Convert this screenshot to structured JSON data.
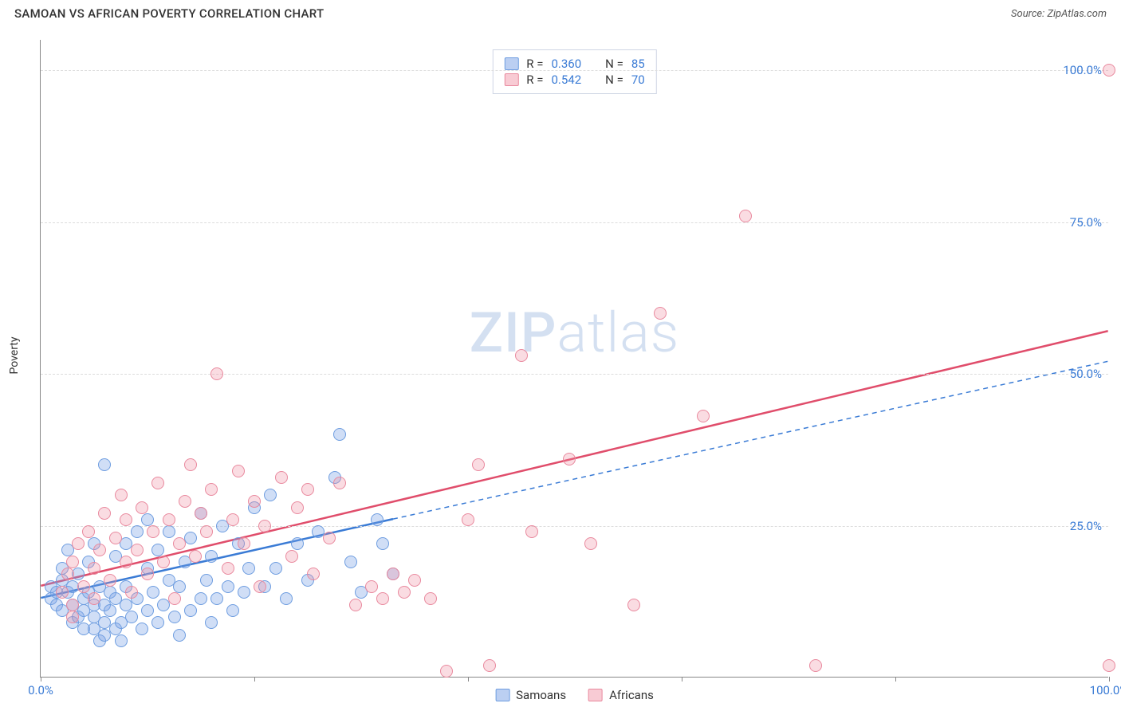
{
  "title": "SAMOAN VS AFRICAN POVERTY CORRELATION CHART",
  "source_label": "Source:",
  "source_name": "ZipAtlas.com",
  "ylabel": "Poverty",
  "watermark_bold": "ZIP",
  "watermark_light": "atlas",
  "chart": {
    "type": "scatter",
    "xlim": [
      0,
      100
    ],
    "ylim": [
      0,
      105
    ],
    "x_ticks": [
      0,
      20,
      40,
      60,
      80,
      100
    ],
    "x_tick_labels": [
      "0.0%",
      "",
      "",
      "",
      "",
      "100.0%"
    ],
    "y_gridlines": [
      25,
      50,
      75,
      100
    ],
    "y_tick_labels": [
      "25.0%",
      "50.0%",
      "75.0%",
      "100.0%"
    ],
    "grid_color": "#dddddd",
    "axis_color": "#888888",
    "tick_label_color": "#3a7bd5",
    "background_color": "#ffffff",
    "series": [
      {
        "name": "Samoans",
        "color_fill": "rgba(120,160,230,0.35)",
        "color_stroke": "#6e9de0",
        "marker_size": 16,
        "R": "0.360",
        "N": "85",
        "trend": {
          "x1": 0,
          "y1": 13,
          "x2": 33,
          "y2": 26,
          "ext_x2": 100,
          "ext_y2": 52,
          "stroke": "#3a7bd5",
          "width": 2.5,
          "dash_ext": "6,5"
        },
        "points": [
          [
            1,
            13
          ],
          [
            1,
            15
          ],
          [
            1.5,
            12
          ],
          [
            1.5,
            14
          ],
          [
            2,
            16
          ],
          [
            2,
            11
          ],
          [
            2,
            18
          ],
          [
            2.5,
            21
          ],
          [
            2.5,
            14
          ],
          [
            3,
            15
          ],
          [
            3,
            12
          ],
          [
            3,
            9
          ],
          [
            3.5,
            10
          ],
          [
            3.5,
            17
          ],
          [
            4,
            13
          ],
          [
            4,
            8
          ],
          [
            4,
            11
          ],
          [
            4.5,
            14
          ],
          [
            4.5,
            19
          ],
          [
            5,
            12
          ],
          [
            5,
            8
          ],
          [
            5,
            10
          ],
          [
            5,
            22
          ],
          [
            5.5,
            15
          ],
          [
            5.5,
            6
          ],
          [
            6,
            9
          ],
          [
            6,
            7
          ],
          [
            6,
            12
          ],
          [
            6,
            35
          ],
          [
            6.5,
            14
          ],
          [
            6.5,
            11
          ],
          [
            7,
            20
          ],
          [
            7,
            8
          ],
          [
            7,
            13
          ],
          [
            7.5,
            9
          ],
          [
            7.5,
            6
          ],
          [
            8,
            12
          ],
          [
            8,
            22
          ],
          [
            8,
            15
          ],
          [
            8.5,
            10
          ],
          [
            9,
            24
          ],
          [
            9,
            13
          ],
          [
            9.5,
            8
          ],
          [
            10,
            18
          ],
          [
            10,
            11
          ],
          [
            10,
            26
          ],
          [
            10.5,
            14
          ],
          [
            11,
            9
          ],
          [
            11,
            21
          ],
          [
            11.5,
            12
          ],
          [
            12,
            16
          ],
          [
            12,
            24
          ],
          [
            12.5,
            10
          ],
          [
            13,
            15
          ],
          [
            13,
            7
          ],
          [
            13.5,
            19
          ],
          [
            14,
            11
          ],
          [
            14,
            23
          ],
          [
            15,
            13
          ],
          [
            15,
            27
          ],
          [
            15.5,
            16
          ],
          [
            16,
            9
          ],
          [
            16,
            20
          ],
          [
            16.5,
            13
          ],
          [
            17,
            25
          ],
          [
            17.5,
            15
          ],
          [
            18,
            11
          ],
          [
            18.5,
            22
          ],
          [
            19,
            14
          ],
          [
            19.5,
            18
          ],
          [
            20,
            28
          ],
          [
            21,
            15
          ],
          [
            21.5,
            30
          ],
          [
            22,
            18
          ],
          [
            23,
            13
          ],
          [
            24,
            22
          ],
          [
            25,
            16
          ],
          [
            26,
            24
          ],
          [
            27.5,
            33
          ],
          [
            28,
            40
          ],
          [
            29,
            19
          ],
          [
            30,
            14
          ],
          [
            31.5,
            26
          ],
          [
            32,
            22
          ],
          [
            33,
            17
          ]
        ]
      },
      {
        "name": "Africans",
        "color_fill": "rgba(240,140,160,0.30)",
        "color_stroke": "#e9899e",
        "marker_size": 16,
        "R": "0.542",
        "N": "70",
        "trend": {
          "x1": 0,
          "y1": 15,
          "x2": 100,
          "y2": 57,
          "stroke": "#e04d6b",
          "width": 2.5
        },
        "points": [
          [
            2,
            14
          ],
          [
            2.5,
            17
          ],
          [
            3,
            12
          ],
          [
            3,
            19
          ],
          [
            3.5,
            22
          ],
          [
            4,
            15
          ],
          [
            4.5,
            24
          ],
          [
            5,
            18
          ],
          [
            5,
            13
          ],
          [
            5.5,
            21
          ],
          [
            6,
            27
          ],
          [
            6.5,
            16
          ],
          [
            7,
            23
          ],
          [
            7.5,
            30
          ],
          [
            8,
            19
          ],
          [
            8,
            26
          ],
          [
            8.5,
            14
          ],
          [
            9,
            21
          ],
          [
            9.5,
            28
          ],
          [
            10,
            17
          ],
          [
            10.5,
            24
          ],
          [
            11,
            32
          ],
          [
            11.5,
            19
          ],
          [
            12,
            26
          ],
          [
            12.5,
            13
          ],
          [
            13,
            22
          ],
          [
            13.5,
            29
          ],
          [
            14,
            35
          ],
          [
            14.5,
            20
          ],
          [
            15,
            27
          ],
          [
            15.5,
            24
          ],
          [
            16,
            31
          ],
          [
            16.5,
            50
          ],
          [
            17.5,
            18
          ],
          [
            18,
            26
          ],
          [
            18.5,
            34
          ],
          [
            19,
            22
          ],
          [
            20,
            29
          ],
          [
            20.5,
            15
          ],
          [
            21,
            25
          ],
          [
            22.5,
            33
          ],
          [
            23.5,
            20
          ],
          [
            24,
            28
          ],
          [
            25,
            31
          ],
          [
            25.5,
            17
          ],
          [
            27,
            23
          ],
          [
            28,
            32
          ],
          [
            29.5,
            12
          ],
          [
            31,
            15
          ],
          [
            32,
            13
          ],
          [
            33,
            17
          ],
          [
            34,
            14
          ],
          [
            35,
            16
          ],
          [
            36.5,
            13
          ],
          [
            38,
            1
          ],
          [
            40,
            26
          ],
          [
            41,
            35
          ],
          [
            42,
            2
          ],
          [
            45,
            53
          ],
          [
            46,
            24
          ],
          [
            49.5,
            36
          ],
          [
            51.5,
            22
          ],
          [
            55.5,
            12
          ],
          [
            58,
            60
          ],
          [
            62,
            43
          ],
          [
            66,
            76
          ],
          [
            72.5,
            2
          ],
          [
            100,
            100
          ],
          [
            100,
            2
          ],
          [
            3,
            10
          ]
        ]
      }
    ],
    "legend_bottom": [
      "Samoans",
      "Africans"
    ],
    "stats_labels": {
      "R": "R =",
      "N": "N ="
    }
  }
}
